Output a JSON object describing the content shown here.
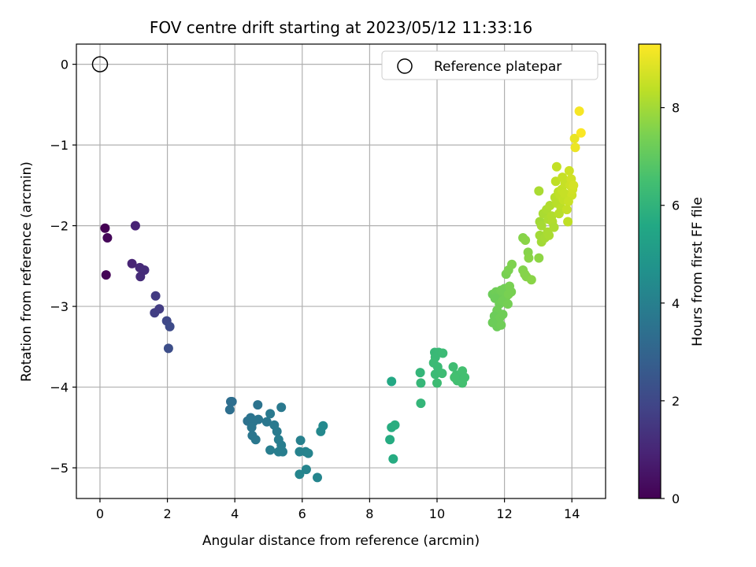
{
  "chart_data": {
    "type": "scatter",
    "title": "FOV centre drift starting at 2023/05/12 11:33:16",
    "xlabel": "Angular distance from reference (arcmin)",
    "ylabel": "Rotation from reference (arcmin)",
    "xlim": [
      -0.7,
      15.0
    ],
    "ylim": [
      -5.38,
      0.25
    ],
    "xticks": [
      0,
      2,
      4,
      6,
      8,
      10,
      12,
      14
    ],
    "yticks": [
      0,
      -1,
      -2,
      -3,
      -4,
      -5
    ],
    "xtick_labels": [
      "0",
      "2",
      "4",
      "6",
      "8",
      "10",
      "12",
      "14"
    ],
    "ytick_labels": [
      "0",
      "−1",
      "−2",
      "−3",
      "−4",
      "−5"
    ],
    "grid": true,
    "legend": {
      "position": "top-right",
      "entries": [
        {
          "label": "Reference platepar",
          "marker": "open-circle"
        }
      ]
    },
    "reference_point": {
      "x": 0,
      "y": 0
    },
    "colorbar": {
      "label": "Hours from first FF file",
      "range": [
        0,
        9.3
      ],
      "ticks": [
        0,
        2,
        4,
        6,
        8
      ],
      "tick_labels": [
        "0",
        "2",
        "4",
        "6",
        "8"
      ],
      "colormap": "viridis"
    },
    "points": [
      [
        0.15,
        -2.03,
        0.0
      ],
      [
        0.18,
        -2.61,
        0.05
      ],
      [
        0.22,
        -2.15,
        0.15
      ],
      [
        1.05,
        -2.0,
        0.9
      ],
      [
        0.95,
        -2.47,
        0.95
      ],
      [
        1.18,
        -2.52,
        1.1
      ],
      [
        1.32,
        -2.55,
        1.2
      ],
      [
        1.2,
        -2.63,
        1.15
      ],
      [
        1.65,
        -2.87,
        1.6
      ],
      [
        1.62,
        -3.08,
        1.7
      ],
      [
        1.76,
        -3.03,
        1.65
      ],
      [
        1.98,
        -3.18,
        2.0
      ],
      [
        2.07,
        -3.25,
        2.1
      ],
      [
        2.03,
        -3.52,
        2.2
      ],
      [
        3.88,
        -4.18,
        3.3
      ],
      [
        3.92,
        -4.18,
        3.35
      ],
      [
        3.85,
        -4.28,
        3.4
      ],
      [
        4.38,
        -4.42,
        3.5
      ],
      [
        4.47,
        -4.38,
        3.55
      ],
      [
        4.55,
        -4.43,
        3.6
      ],
      [
        4.7,
        -4.4,
        3.6
      ],
      [
        4.68,
        -4.22,
        3.55
      ],
      [
        4.5,
        -4.5,
        3.65
      ],
      [
        4.52,
        -4.6,
        3.65
      ],
      [
        4.62,
        -4.65,
        3.7
      ],
      [
        4.95,
        -4.43,
        3.7
      ],
      [
        5.05,
        -4.33,
        3.75
      ],
      [
        5.17,
        -4.47,
        3.8
      ],
      [
        5.25,
        -4.55,
        3.85
      ],
      [
        5.38,
        -4.25,
        3.75
      ],
      [
        5.3,
        -4.65,
        3.9
      ],
      [
        5.38,
        -4.72,
        3.9
      ],
      [
        5.42,
        -4.8,
        3.95
      ],
      [
        5.3,
        -4.8,
        3.95
      ],
      [
        5.05,
        -4.78,
        3.9
      ],
      [
        5.95,
        -4.66,
        4.0
      ],
      [
        5.92,
        -4.8,
        4.1
      ],
      [
        6.1,
        -4.8,
        4.1
      ],
      [
        6.18,
        -4.82,
        4.15
      ],
      [
        5.92,
        -5.08,
        4.2
      ],
      [
        6.12,
        -5.02,
        4.15
      ],
      [
        6.45,
        -5.12,
        4.2
      ],
      [
        6.55,
        -4.55,
        4.3
      ],
      [
        6.62,
        -4.48,
        4.35
      ],
      [
        8.65,
        -3.93,
        5.6
      ],
      [
        8.6,
        -4.65,
        5.7
      ],
      [
        8.65,
        -4.5,
        5.75
      ],
      [
        8.75,
        -4.47,
        5.8
      ],
      [
        8.7,
        -4.89,
        5.7
      ],
      [
        9.5,
        -3.82,
        6.1
      ],
      [
        9.52,
        -3.95,
        6.15
      ],
      [
        9.52,
        -4.2,
        6.1
      ],
      [
        9.93,
        -3.57,
        6.2
      ],
      [
        10.05,
        -3.57,
        6.25
      ],
      [
        10.17,
        -3.58,
        6.3
      ],
      [
        9.95,
        -3.63,
        6.25
      ],
      [
        9.9,
        -3.7,
        6.3
      ],
      [
        10.02,
        -3.75,
        6.3
      ],
      [
        9.95,
        -3.84,
        6.3
      ],
      [
        10.15,
        -3.83,
        6.35
      ],
      [
        10.0,
        -3.95,
        6.35
      ],
      [
        10.48,
        -3.75,
        6.4
      ],
      [
        10.57,
        -3.85,
        6.45
      ],
      [
        10.6,
        -3.92,
        6.45
      ],
      [
        10.75,
        -3.8,
        6.5
      ],
      [
        10.82,
        -3.88,
        6.5
      ],
      [
        10.75,
        -3.95,
        6.5
      ],
      [
        10.52,
        -3.88,
        6.5
      ],
      [
        11.65,
        -2.85,
        7.2
      ],
      [
        11.75,
        -2.82,
        7.25
      ],
      [
        11.82,
        -2.85,
        7.25
      ],
      [
        11.9,
        -2.8,
        7.3
      ],
      [
        12.0,
        -2.78,
        7.3
      ],
      [
        11.72,
        -2.9,
        7.2
      ],
      [
        11.85,
        -2.97,
        7.25
      ],
      [
        11.95,
        -2.93,
        7.3
      ],
      [
        12.05,
        -2.88,
        7.3
      ],
      [
        11.78,
        -3.05,
        7.25
      ],
      [
        11.7,
        -3.12,
        7.2
      ],
      [
        11.85,
        -3.15,
        7.25
      ],
      [
        11.95,
        -3.1,
        7.25
      ],
      [
        11.65,
        -3.2,
        7.2
      ],
      [
        11.78,
        -3.25,
        7.2
      ],
      [
        11.9,
        -3.23,
        7.25
      ],
      [
        12.05,
        -2.6,
        7.4
      ],
      [
        12.12,
        -2.55,
        7.45
      ],
      [
        12.22,
        -2.48,
        7.5
      ],
      [
        12.15,
        -2.75,
        7.4
      ],
      [
        12.12,
        -2.85,
        7.4
      ],
      [
        12.2,
        -2.82,
        7.4
      ],
      [
        12.1,
        -2.97,
        7.35
      ],
      [
        12.55,
        -2.15,
        7.6
      ],
      [
        12.62,
        -2.18,
        7.65
      ],
      [
        12.55,
        -2.55,
        7.55
      ],
      [
        12.6,
        -2.6,
        7.6
      ],
      [
        12.65,
        -2.63,
        7.6
      ],
      [
        12.8,
        -2.67,
        7.65
      ],
      [
        12.7,
        -2.33,
        7.6
      ],
      [
        12.72,
        -2.4,
        7.65
      ],
      [
        13.02,
        -2.4,
        7.7
      ],
      [
        13.02,
        -1.57,
        8.1
      ],
      [
        13.05,
        -1.95,
        8.0
      ],
      [
        13.1,
        -2.0,
        8.05
      ],
      [
        13.15,
        -1.85,
        8.1
      ],
      [
        13.05,
        -2.12,
        8.0
      ],
      [
        13.1,
        -2.2,
        8.0
      ],
      [
        13.2,
        -2.15,
        8.05
      ],
      [
        13.28,
        -2.08,
        8.1
      ],
      [
        13.3,
        -1.92,
        8.15
      ],
      [
        13.25,
        -1.8,
        8.15
      ],
      [
        13.35,
        -1.75,
        8.2
      ],
      [
        13.4,
        -1.88,
        8.2
      ],
      [
        13.42,
        -1.95,
        8.2
      ],
      [
        13.47,
        -2.02,
        8.15
      ],
      [
        13.32,
        -2.12,
        8.1
      ],
      [
        13.5,
        -1.65,
        8.3
      ],
      [
        13.55,
        -1.72,
        8.3
      ],
      [
        13.52,
        -1.45,
        8.4
      ],
      [
        13.55,
        -1.27,
        8.45
      ],
      [
        13.6,
        -1.58,
        8.35
      ],
      [
        13.65,
        -1.62,
        8.4
      ],
      [
        13.7,
        -1.55,
        8.45
      ],
      [
        13.68,
        -1.78,
        8.35
      ],
      [
        13.62,
        -1.85,
        8.3
      ],
      [
        13.75,
        -1.68,
        8.45
      ],
      [
        13.72,
        -1.4,
        8.5
      ],
      [
        13.8,
        -1.48,
        8.5
      ],
      [
        13.78,
        -1.6,
        8.5
      ],
      [
        13.88,
        -1.95,
        8.4
      ],
      [
        13.92,
        -1.32,
        8.6
      ],
      [
        13.95,
        -1.5,
        8.6
      ],
      [
        13.98,
        -1.42,
        8.65
      ],
      [
        14.0,
        -1.62,
        8.6
      ],
      [
        14.02,
        -1.55,
        8.65
      ],
      [
        14.05,
        -1.5,
        8.7
      ],
      [
        13.9,
        -1.7,
        8.55
      ],
      [
        13.85,
        -1.8,
        8.5
      ],
      [
        14.08,
        -0.92,
        9.0
      ],
      [
        14.1,
        -1.03,
        9.05
      ],
      [
        14.22,
        -0.58,
        9.2
      ],
      [
        14.27,
        -0.85,
        9.25
      ]
    ]
  }
}
